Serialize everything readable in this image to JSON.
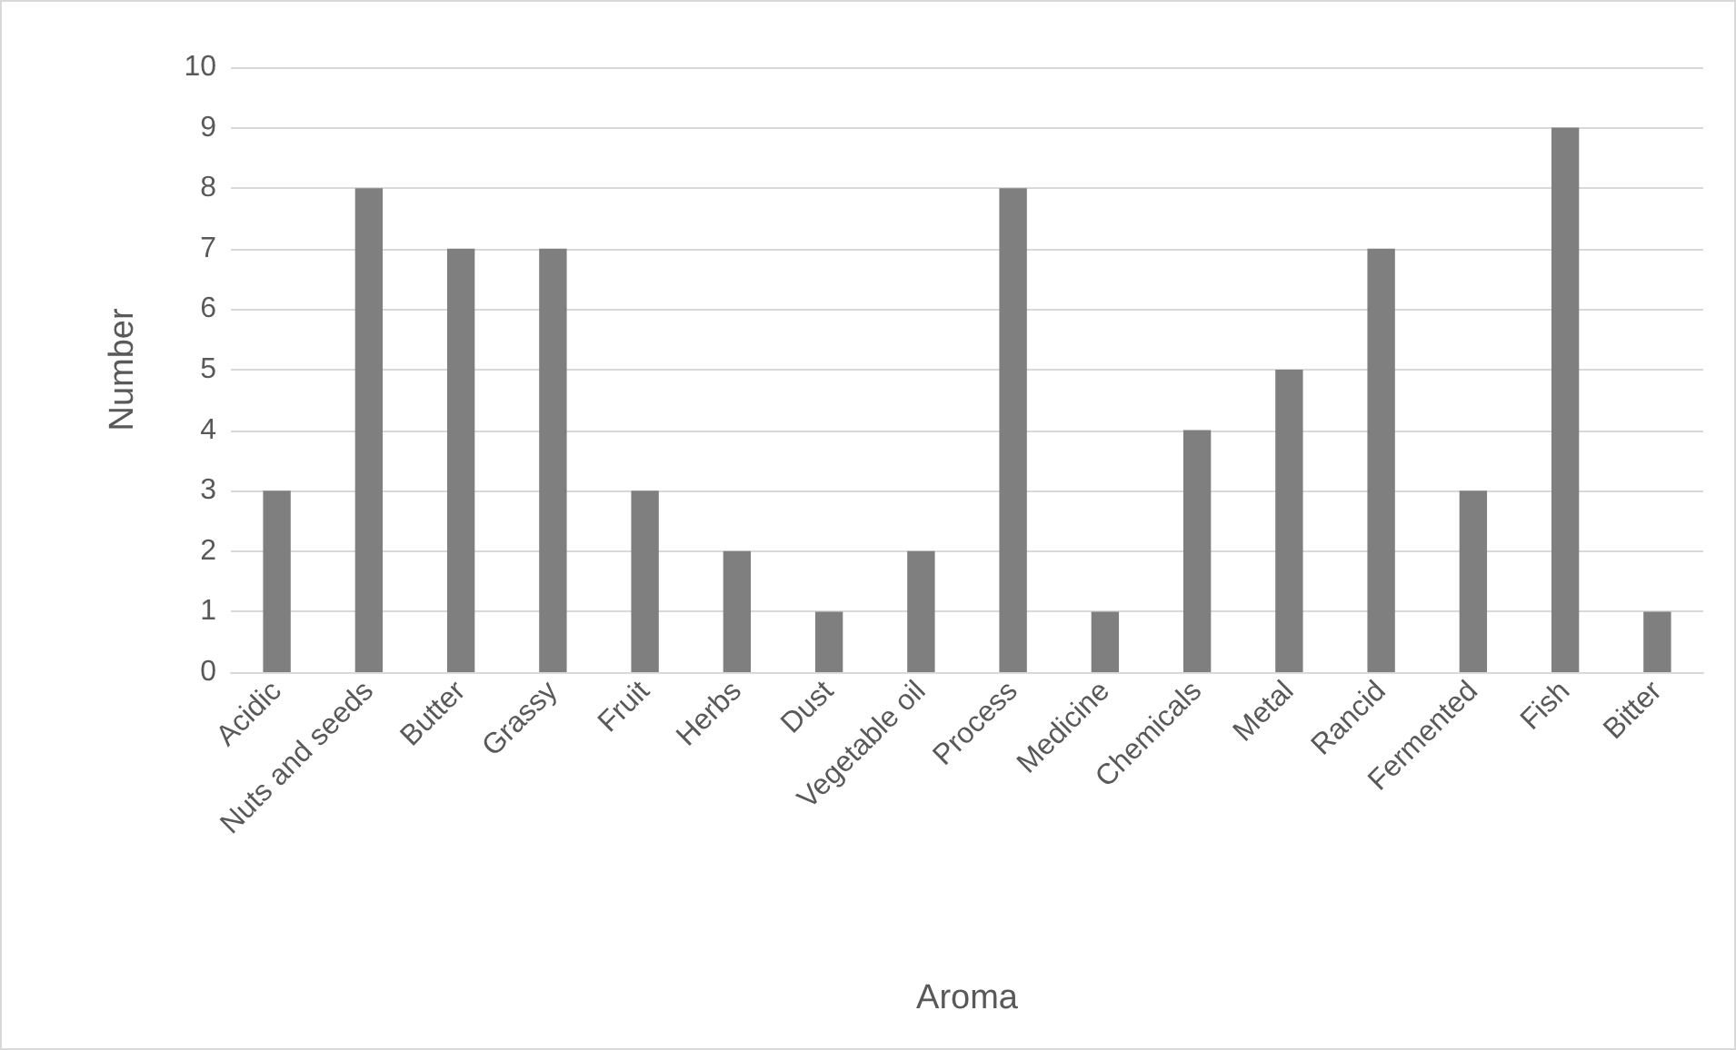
{
  "chart_data": {
    "type": "bar",
    "xlabel": "Aroma",
    "ylabel": "Number",
    "categories": [
      "Acidic",
      "Nuts and seeds",
      "Butter",
      "Grassy",
      "Fruit",
      "Herbs",
      "Dust",
      "Vegetable oil",
      "Process",
      "Medicine",
      "Chemicals",
      "Metal",
      "Rancid",
      "Fermented",
      "Fish",
      "Bitter"
    ],
    "values": [
      3,
      8,
      7,
      7,
      3,
      2,
      1,
      2,
      8,
      1,
      4,
      5,
      7,
      3,
      9,
      1
    ],
    "color": "#7f7f7f",
    "ylim": [
      0,
      10
    ],
    "yticks": [
      0,
      1,
      2,
      3,
      4,
      5,
      6,
      7,
      8,
      9,
      10
    ],
    "grid": "y"
  }
}
